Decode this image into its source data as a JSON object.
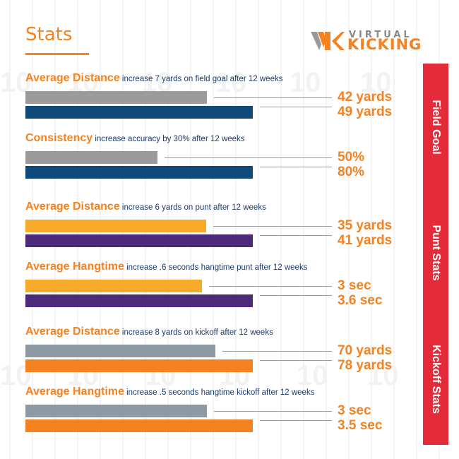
{
  "header": {
    "title": "Stats",
    "logo_top": "VIRTUAL",
    "logo_bottom": "KICKING"
  },
  "colors": {
    "accent": "#f58220",
    "field_goal_before": "#9b9b9b",
    "field_goal_after": "#0f4a7a",
    "punt_before": "#f7a928",
    "punt_after": "#4b2a7a",
    "kickoff_before": "#8d9aa4",
    "kickoff_after": "#f58220",
    "sidebar": "#e32b3a"
  },
  "chart_data": {
    "type": "bar",
    "orientation": "horizontal",
    "sections": [
      {
        "label": "Field Goal",
        "metrics": [
          {
            "title": "Average Distance",
            "note": "increase 7 yards on field goal after 12 weeks",
            "unit": "yards",
            "values": [
              42,
              49
            ],
            "labels": [
              "42 yards",
              "49 yards"
            ]
          },
          {
            "title": "Consistency",
            "note": "increase accuracy by 30% after 12 weeks",
            "unit": "%",
            "values": [
              50,
              80
            ],
            "labels": [
              "50%",
              "80%"
            ]
          }
        ]
      },
      {
        "label": "Punt Stats",
        "metrics": [
          {
            "title": "Average Distance",
            "note": "increase 6 yards on punt after 12 weeks",
            "unit": "yards",
            "values": [
              35,
              41
            ],
            "labels": [
              "35 yards",
              "41 yards"
            ]
          },
          {
            "title": "Average Hangtime",
            "note": "increase .6 seconds hangtime punt after 12 weeks",
            "unit": "sec",
            "values": [
              3,
              3.6
            ],
            "labels": [
              "3 sec",
              "3.6 sec"
            ]
          }
        ]
      },
      {
        "label": "Kickoff Stats",
        "metrics": [
          {
            "title": "Average Distance",
            "note": "increase 8 yards on kickoff after 12 weeks",
            "unit": "yards",
            "values": [
              70,
              78
            ],
            "labels": [
              "70 yards",
              "78 yards"
            ]
          },
          {
            "title": "Average Hangtime",
            "note": "increase .5 seconds hangtime kickoff after 12 weeks",
            "unit": "sec",
            "values": [
              3,
              3.5
            ],
            "labels": [
              "3 sec",
              "3.5 sec"
            ]
          }
        ]
      }
    ]
  }
}
